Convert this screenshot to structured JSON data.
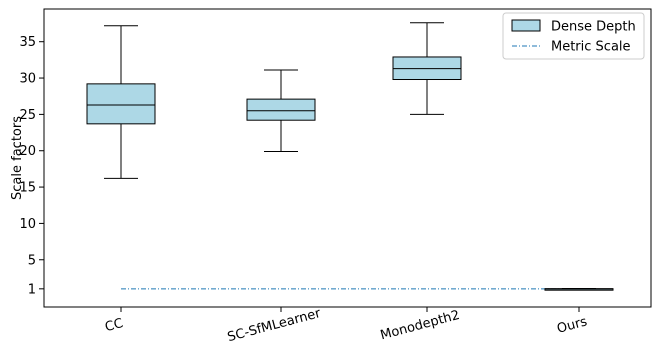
{
  "chart_data": {
    "type": "box",
    "categories": [
      "CC",
      "SC-SfMLearner",
      "Monodepth2",
      "Ours"
    ],
    "boxes": [
      {
        "category": "CC",
        "whisker_low": 16.2,
        "q1": 23.7,
        "median": 26.3,
        "q3": 29.2,
        "whisker_high": 37.2
      },
      {
        "category": "SC-SfMLearner",
        "whisker_low": 19.9,
        "q1": 24.2,
        "median": 25.5,
        "q3": 27.1,
        "whisker_high": 31.1
      },
      {
        "category": "Monodepth2",
        "whisker_low": 25.0,
        "q1": 29.8,
        "median": 31.3,
        "q3": 32.9,
        "whisker_high": 37.6
      },
      {
        "category": "Ours",
        "whisker_low": 0.96,
        "q1": 0.98,
        "median": 1.0,
        "q3": 1.02,
        "whisker_high": 1.04
      }
    ],
    "reference_line": {
      "name": "Metric Scale",
      "y": 1
    },
    "box_series_name": "Dense Depth",
    "ylabel": "Scale factors",
    "xlabel": "",
    "title": "",
    "yticks": [
      1,
      5,
      10,
      15,
      20,
      25,
      30,
      35
    ],
    "ylim": [
      -1.5,
      39.5
    ],
    "grid": false,
    "legend_position": "top-right",
    "colors": {
      "box_fill": "#add8e6",
      "box_edge": "#000000",
      "reference_line": "#1f77b4"
    }
  }
}
